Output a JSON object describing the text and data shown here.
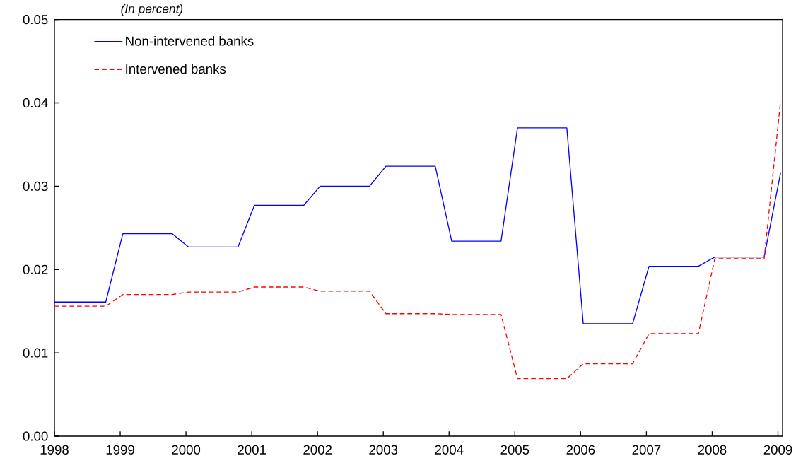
{
  "chart_data": {
    "type": "line",
    "subtitle": "(In percent)",
    "series": [
      {
        "name": "Non-intervened banks",
        "color": "#0000ff",
        "line_style": "solid",
        "x": [
          1998,
          1998.78,
          1999.04,
          1999.79,
          2000.04,
          2000.79,
          2001.04,
          2001.79,
          2002.04,
          2002.79,
          2003.04,
          2003.79,
          2004.04,
          2004.79,
          2005.04,
          2005.79,
          2006.04,
          2006.79,
          2007.04,
          2007.79,
          2008.04,
          2008.79,
          2009.04
        ],
        "values": [
          0.0161,
          0.0161,
          0.0243,
          0.0243,
          0.0227,
          0.0227,
          0.0277,
          0.0277,
          0.03,
          0.03,
          0.0324,
          0.0324,
          0.0234,
          0.0234,
          0.037,
          0.037,
          0.0135,
          0.0135,
          0.0204,
          0.0204,
          0.0215,
          0.0215,
          0.0316
        ]
      },
      {
        "name": "Intervened banks",
        "color": "#ff0000",
        "line_style": "dashed",
        "x": [
          1998,
          1998.78,
          1999.04,
          1999.79,
          2000.04,
          2000.79,
          2001.04,
          2001.79,
          2002.04,
          2002.79,
          2003.04,
          2003.79,
          2004.04,
          2004.79,
          2005.04,
          2005.79,
          2006.04,
          2006.79,
          2007.04,
          2007.79,
          2008.04,
          2008.79,
          2009.04
        ],
        "values": [
          0.0156,
          0.0156,
          0.017,
          0.017,
          0.0173,
          0.0173,
          0.0179,
          0.0179,
          0.0174,
          0.0174,
          0.0147,
          0.0147,
          0.0146,
          0.0146,
          0.0069,
          0.0069,
          0.0087,
          0.0087,
          0.0123,
          0.0123,
          0.0213,
          0.0213,
          0.0402
        ]
      }
    ],
    "xlim": [
      1998,
      2009.07
    ],
    "xticks": [
      1998,
      1999,
      2000,
      2001,
      2002,
      2003,
      2004,
      2005,
      2006,
      2007,
      2008,
      2009
    ],
    "ylim": [
      0,
      0.05
    ],
    "yticks": [
      {
        "value": 0,
        "label": "0.00"
      },
      {
        "value": 0.01,
        "label": "0.01"
      },
      {
        "value": 0.02,
        "label": "0.02"
      },
      {
        "value": 0.03,
        "label": "0.03"
      },
      {
        "value": 0.04,
        "label": "0.04"
      },
      {
        "value": 0.05,
        "label": "0.05"
      }
    ],
    "legend": "top left"
  }
}
